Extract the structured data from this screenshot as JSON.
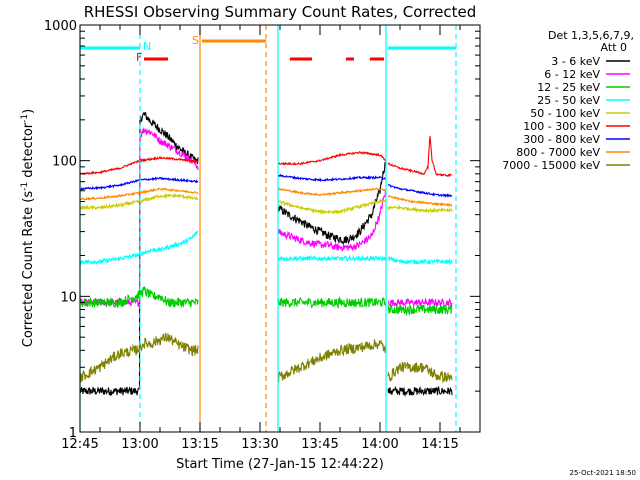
{
  "chart_data": {
    "type": "line",
    "title": "RHESSI Observing Summary Count Rates, Corrected",
    "xlabel": "Start Time (27-Jan-15 12:44:22)",
    "ylabel_main": "Corrected Count Rate (s",
    "ylabel_sup1": "-1",
    "ylabel_mid": " detector",
    "ylabel_sup2": "-1",
    "ylabel_end": ")",
    "y_log": true,
    "ylim": [
      1,
      1000
    ],
    "xlim_minutes": [
      0,
      100
    ],
    "x_ticks": [
      {
        "label": "12:45",
        "minute": 0
      },
      {
        "label": "13:00",
        "minute": 15
      },
      {
        "label": "13:15",
        "minute": 30
      },
      {
        "label": "13:30",
        "minute": 45
      },
      {
        "label": "13:45",
        "minute": 60
      },
      {
        "label": "14:00",
        "minute": 75
      },
      {
        "label": "14:15",
        "minute": 90
      }
    ],
    "y_ticks": [
      {
        "label": "1",
        "value": 1
      },
      {
        "label": "10",
        "value": 10
      },
      {
        "label": "100",
        "value": 100
      },
      {
        "label": "1000",
        "value": 1000
      }
    ],
    "legend": {
      "header1": "Det 1,3,5,6,7,9,",
      "header2": "Att 0",
      "placement": "right"
    },
    "series": [
      {
        "name": "3 - 6 keV",
        "color": "#000000",
        "noise": 0.07,
        "seg1": {
          "x": [
            0,
            14.9,
            15,
            16,
            18,
            20,
            22,
            24,
            26,
            28.9,
            29.5
          ],
          "y": [
            2,
            2,
            200,
            220,
            190,
            170,
            150,
            130,
            115,
            100,
            100
          ]
        },
        "seg2": {
          "x": [
            49.5,
            52,
            55,
            57,
            60,
            62,
            64,
            66,
            68,
            70,
            73,
            75,
            76.5
          ],
          "y": [
            45,
            40,
            36,
            33,
            30,
            28,
            27,
            26,
            27,
            30,
            40,
            60,
            100
          ]
        },
        "seg3": {
          "x": [
            77,
            80,
            83,
            86,
            89,
            93
          ],
          "y": [
            2,
            2,
            2,
            2,
            2,
            2
          ]
        }
      },
      {
        "name": "6 - 12 keV",
        "color": "#ff00ff",
        "noise": 0.06,
        "seg1": {
          "x": [
            0,
            14.9,
            15,
            16,
            18,
            20,
            22,
            24,
            26,
            28.9,
            29.5
          ],
          "y": [
            9,
            9,
            150,
            170,
            160,
            140,
            130,
            120,
            110,
            95,
            90
          ]
        },
        "seg2": {
          "x": [
            49.5,
            52,
            55,
            57,
            60,
            62,
            64,
            66,
            68,
            70,
            73,
            75,
            76.5
          ],
          "y": [
            30,
            28,
            26,
            25,
            24,
            24,
            23,
            23,
            23,
            24,
            28,
            40,
            60
          ]
        },
        "seg3": {
          "x": [
            77,
            80,
            83,
            86,
            89,
            93
          ],
          "y": [
            9,
            9,
            9,
            9,
            9,
            9
          ]
        }
      },
      {
        "name": "12 - 25 keV",
        "color": "#00cc00",
        "noise": 0.08,
        "seg1": {
          "x": [
            0,
            5,
            10,
            14,
            16,
            18,
            20,
            22,
            24,
            26,
            28,
            29.5
          ],
          "y": [
            9,
            9,
            9,
            10,
            11,
            10,
            10,
            9,
            9,
            9,
            9,
            9
          ]
        },
        "seg2": {
          "x": [
            49.5,
            55,
            60,
            65,
            70,
            75,
            76.5
          ],
          "y": [
            9,
            9,
            9,
            9,
            9,
            9,
            9
          ]
        },
        "seg3": {
          "x": [
            77,
            80,
            83,
            86,
            89,
            93
          ],
          "y": [
            8,
            8,
            8,
            8,
            8,
            8
          ]
        }
      },
      {
        "name": "25 - 50 keV",
        "color": "#00ffff",
        "noise": 0.035,
        "seg1": {
          "x": [
            0,
            5,
            10,
            14,
            16,
            18,
            20,
            22,
            24,
            26,
            28,
            29.5
          ],
          "y": [
            18,
            18,
            19,
            20,
            21,
            22,
            22,
            23,
            24,
            25,
            27,
            30
          ]
        },
        "seg2": {
          "x": [
            49.5,
            55,
            60,
            65,
            70,
            75,
            76.5
          ],
          "y": [
            19,
            19,
            19,
            19,
            19,
            19,
            19
          ]
        },
        "seg3": {
          "x": [
            77,
            80,
            83,
            86,
            89,
            93
          ],
          "y": [
            19,
            18,
            18,
            18,
            18,
            18
          ]
        }
      },
      {
        "name": "50 - 100 keV",
        "color": "#cccc00",
        "noise": 0.025,
        "seg1": {
          "x": [
            0,
            5,
            10,
            15,
            20,
            25,
            29.5
          ],
          "y": [
            45,
            45,
            47,
            50,
            55,
            55,
            52
          ]
        },
        "seg2": {
          "x": [
            49.5,
            55,
            60,
            65,
            70,
            75,
            76.5
          ],
          "y": [
            50,
            45,
            42,
            42,
            46,
            50,
            50
          ]
        },
        "seg3": {
          "x": [
            77,
            80,
            83,
            86,
            89,
            93
          ],
          "y": [
            45,
            45,
            44,
            43,
            43,
            43
          ]
        }
      },
      {
        "name": "100 - 300 keV",
        "color": "#ff0000",
        "noise": 0.015,
        "seg1": {
          "x": [
            0,
            5,
            10,
            15,
            20,
            25,
            29.5
          ],
          "y": [
            80,
            82,
            88,
            100,
            105,
            102,
            98
          ]
        },
        "seg2": {
          "x": [
            49.5,
            55,
            60,
            65,
            70,
            75,
            76.5
          ],
          "y": [
            95,
            95,
            100,
            110,
            115,
            110,
            100
          ]
        },
        "seg3": {
          "x": [
            77,
            80,
            83,
            86,
            87,
            87.5,
            88,
            89,
            91,
            93
          ],
          "y": [
            95,
            88,
            84,
            80,
            90,
            150,
            100,
            80,
            78,
            78
          ]
        }
      },
      {
        "name": "300 - 800 keV",
        "color": "#0000ff",
        "noise": 0.015,
        "seg1": {
          "x": [
            0,
            5,
            10,
            15,
            20,
            25,
            29.5
          ],
          "y": [
            62,
            63,
            66,
            72,
            74,
            72,
            70
          ]
        },
        "seg2": {
          "x": [
            49.5,
            55,
            60,
            65,
            70,
            75,
            76.5
          ],
          "y": [
            78,
            74,
            72,
            73,
            75,
            75,
            74
          ]
        },
        "seg3": {
          "x": [
            77,
            80,
            83,
            86,
            89,
            93
          ],
          "y": [
            66,
            62,
            60,
            58,
            56,
            55
          ]
        }
      },
      {
        "name": "800 - 7000 keV",
        "color": "#ff8800",
        "noise": 0.015,
        "seg1": {
          "x": [
            0,
            5,
            10,
            15,
            20,
            25,
            29.5
          ],
          "y": [
            52,
            53,
            55,
            58,
            62,
            60,
            58
          ]
        },
        "seg2": {
          "x": [
            49.5,
            55,
            60,
            65,
            70,
            75,
            76.5
          ],
          "y": [
            62,
            58,
            56,
            58,
            60,
            62,
            60
          ]
        },
        "seg3": {
          "x": [
            77,
            80,
            83,
            86,
            89,
            93
          ],
          "y": [
            55,
            52,
            50,
            49,
            48,
            47
          ]
        }
      },
      {
        "name": "7000 - 15000 keV",
        "color": "#808000",
        "noise": 0.09,
        "seg1": {
          "x": [
            0,
            5,
            10,
            14,
            16,
            18,
            20,
            22,
            24,
            26,
            28,
            29.5
          ],
          "y": [
            2.5,
            3,
            3.8,
            4,
            4.5,
            4.5,
            4.8,
            5,
            4.5,
            4.2,
            4,
            4
          ]
        },
        "seg2": {
          "x": [
            49.5,
            55,
            60,
            65,
            70,
            75,
            76.5
          ],
          "y": [
            2.5,
            3,
            3.5,
            4,
            4.2,
            4.5,
            4
          ]
        },
        "seg3": {
          "x": [
            77,
            80,
            83,
            86,
            89,
            93
          ],
          "y": [
            2.5,
            3,
            3,
            3,
            2.6,
            2.5
          ]
        }
      }
    ],
    "markers": [
      {
        "label": "N",
        "minute": 15,
        "color": "#00ffff"
      },
      {
        "label": "S",
        "minute": 30,
        "color": "#ff8800"
      },
      {
        "label": "F",
        "minute": 16,
        "color": "#ff0000"
      }
    ],
    "night_bars": [
      [
        0,
        15
      ],
      [
        77,
        94
      ]
    ],
    "saa_bar": [
      30.5,
      46.5
    ],
    "flare_bars": [
      [
        16,
        22
      ],
      [
        52.5,
        58
      ],
      [
        66.5,
        68.5
      ],
      [
        72.5,
        76
      ]
    ],
    "vlines": [
      {
        "minute": 0,
        "color": "#00ffff",
        "dash": false
      },
      {
        "minute": 15,
        "color": "#00ffff",
        "dash": true
      },
      {
        "minute": 30,
        "color": "#ff8800",
        "dash": false
      },
      {
        "minute": 46.5,
        "color": "#ff8800",
        "dash": true
      },
      {
        "minute": 49.5,
        "color": "#00ffff",
        "dash": false
      },
      {
        "minute": 76.5,
        "color": "#00ffff",
        "dash": false
      },
      {
        "minute": 94,
        "color": "#00ffff",
        "dash": true
      }
    ],
    "timestamp": "25-Oct-2021 18:50"
  }
}
